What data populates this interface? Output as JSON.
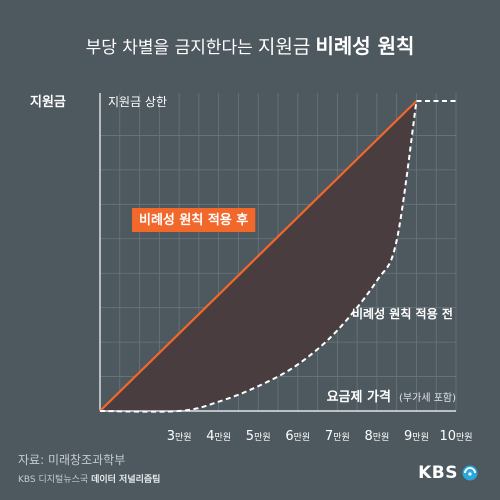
{
  "header": {
    "title_part1": "부당 차별을 금지한다는",
    "title_part2": "지원금",
    "title_part3": "비례성 원칙"
  },
  "chart_data": {
    "type": "line",
    "title": "부당 차별을 금지한다는 지원금 비례성 원칙",
    "ylabel": "지원금",
    "xlabel": "요금제 가격",
    "xlabel_note": "(부가세 포함)",
    "y_cap_label": "지원금 상한",
    "x_unit": "만원",
    "x_ticks": [
      "3만원",
      "4만원",
      "5만원",
      "6만원",
      "7만원",
      "8만원",
      "9만원",
      "10만원"
    ],
    "x_tick_values": [
      3,
      4,
      5,
      6,
      7,
      8,
      9,
      10
    ],
    "xlim": [
      1,
      10
    ],
    "ylim": [
      0,
      1
    ],
    "series": [
      {
        "name": "비례성 원칙 적용 후",
        "color": "#f2672a",
        "x": [
          1,
          9,
          10
        ],
        "y": [
          0,
          1,
          1
        ]
      },
      {
        "name": "비례성 원칙 적용 전",
        "color": "#ffffff",
        "style": "dashed",
        "x": [
          1,
          3,
          4,
          5,
          6,
          7,
          8,
          8.5,
          9,
          10
        ],
        "y": [
          0,
          0,
          0.03,
          0.08,
          0.15,
          0.26,
          0.42,
          0.55,
          1,
          1
        ]
      }
    ],
    "shaded_between_series": true,
    "shade_color": "#4a3d3f",
    "grid": true,
    "accent_color": "#f2672a"
  },
  "source": {
    "label": "자료:",
    "name": "미래창조과학부"
  },
  "credit": {
    "org": "KBS 디지털뉴스국",
    "team": "데이터 저널리즘팀"
  },
  "logo": {
    "text": "KBS"
  }
}
